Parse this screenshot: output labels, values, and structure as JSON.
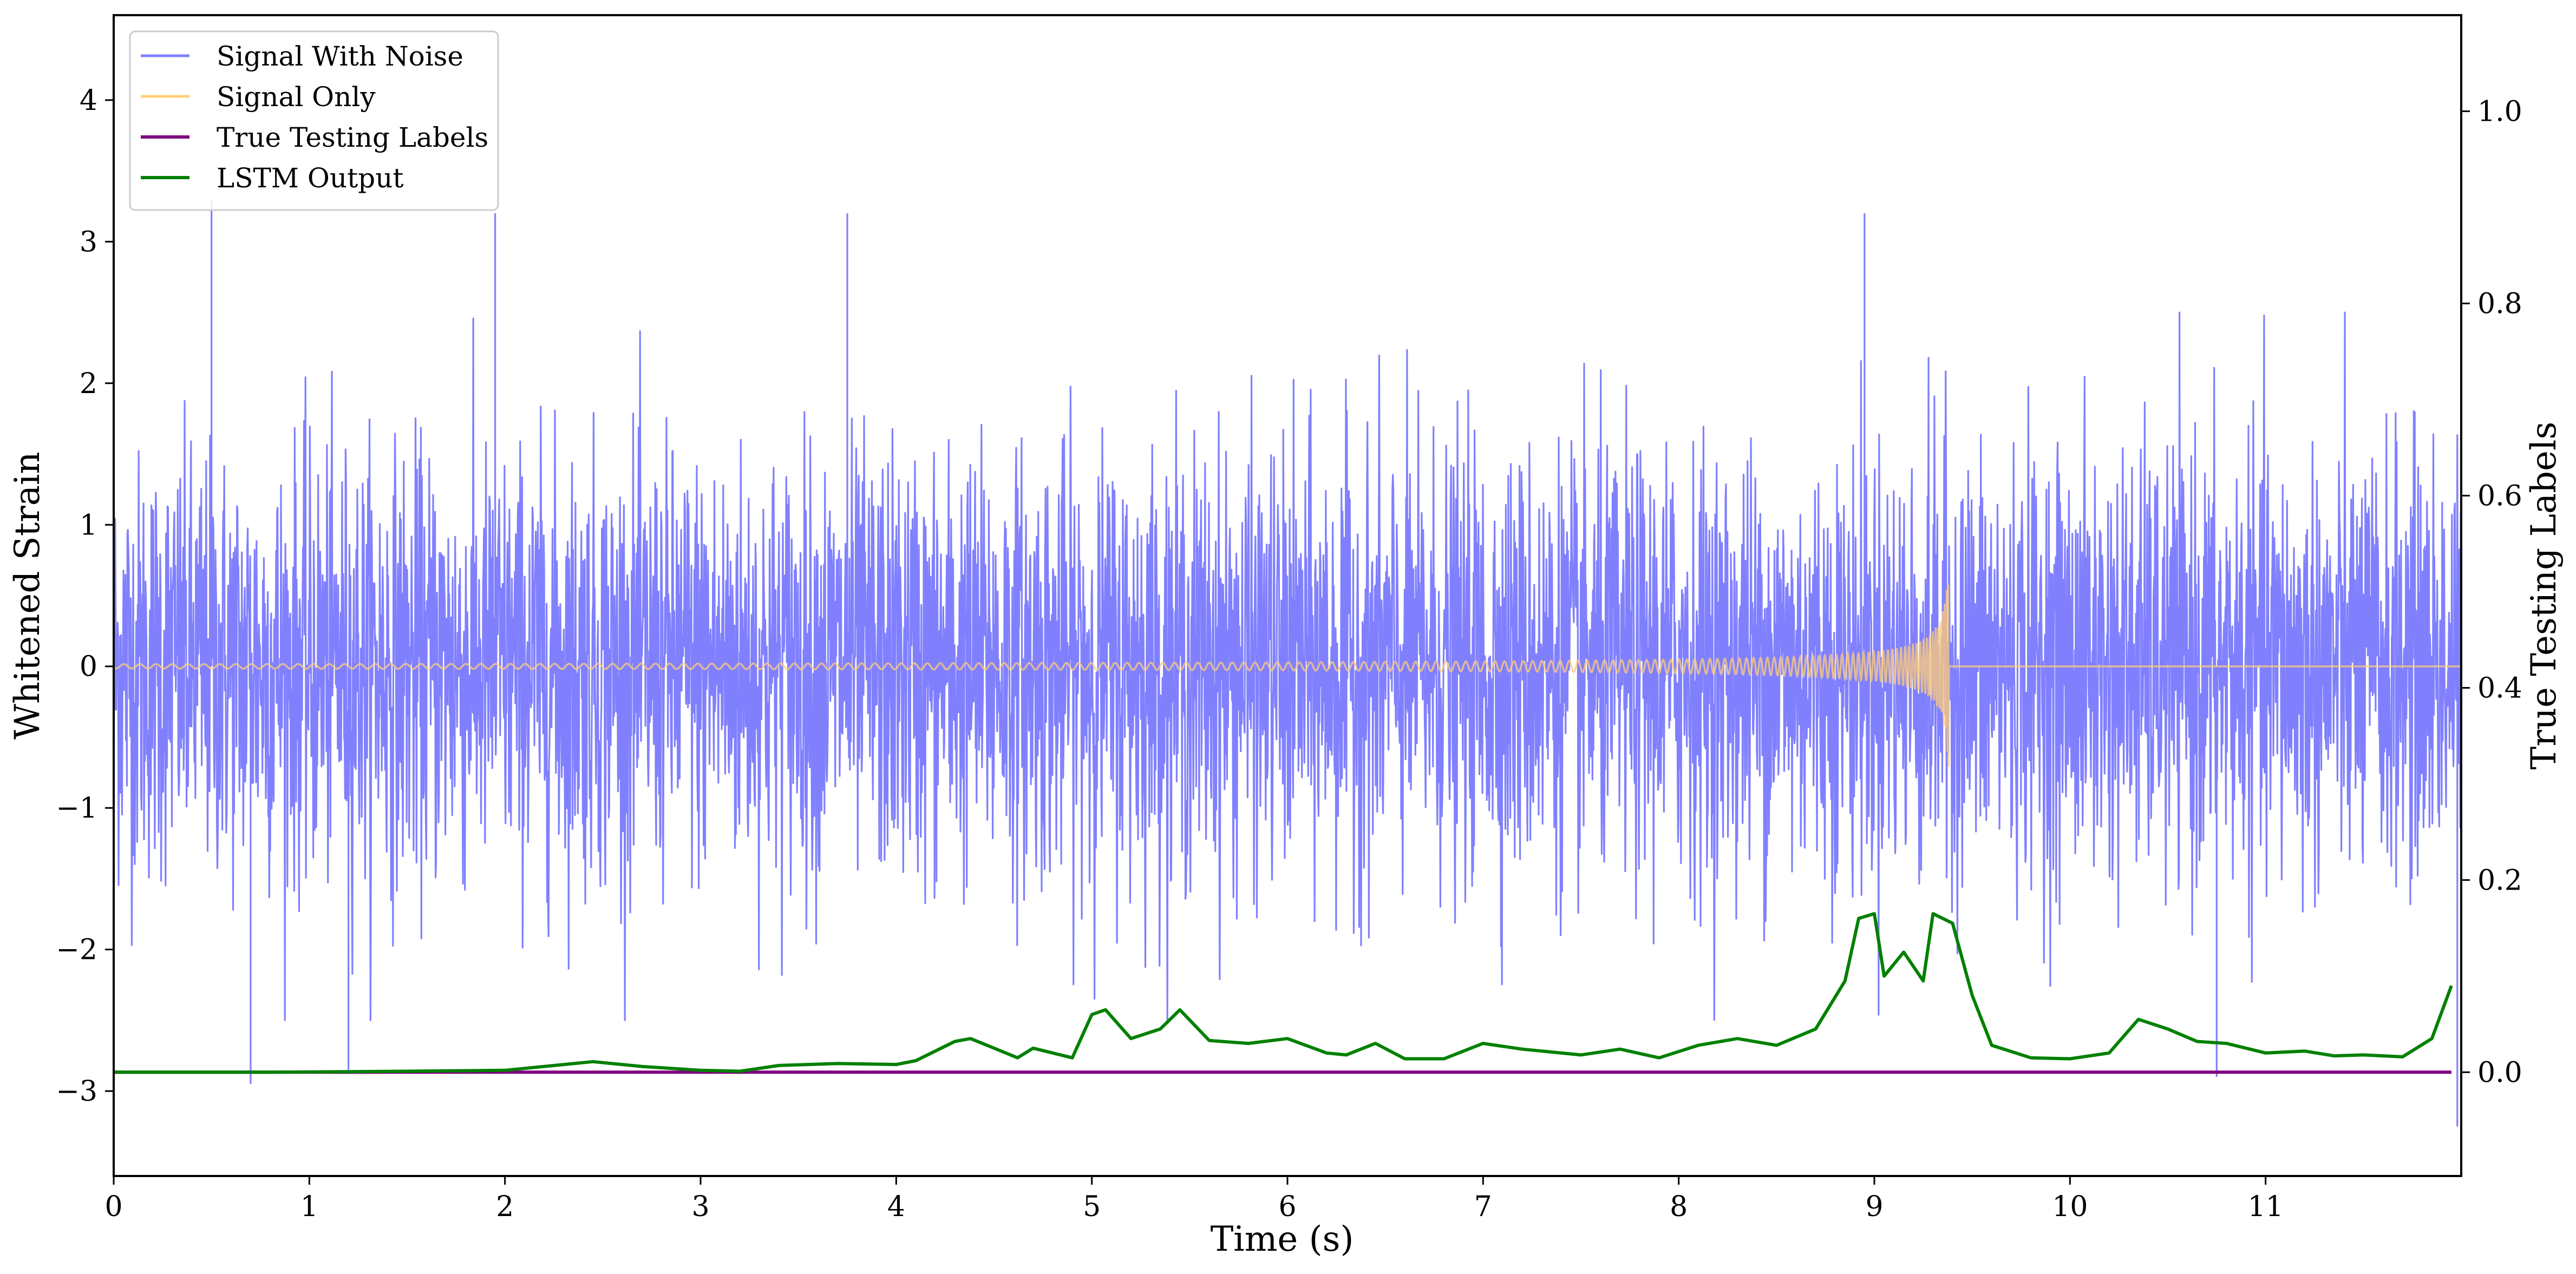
{
  "chart_data": {
    "type": "line",
    "title": "",
    "xlabel": "Time (s)",
    "ylabel": "Whitened Strain",
    "y2label": "True Testing Labels",
    "xlim": [
      0,
      12.0
    ],
    "ylim": [
      -3.6,
      4.6
    ],
    "y2lim": [
      -0.108,
      1.1
    ],
    "xticks": [
      0,
      1,
      2,
      3,
      4,
      5,
      6,
      7,
      8,
      9,
      10,
      11
    ],
    "xtick_labels": [
      "0",
      "1",
      "2",
      "3",
      "4",
      "5",
      "6",
      "7",
      "8",
      "9",
      "10",
      "11"
    ],
    "yticks": [
      -3,
      -2,
      -1,
      0,
      1,
      2,
      3,
      4
    ],
    "ytick_labels": [
      "−3",
      "−2",
      "−1",
      "0",
      "1",
      "2",
      "3",
      "4"
    ],
    "y2ticks": [
      0.0,
      0.2,
      0.4,
      0.6,
      0.8,
      1.0
    ],
    "y2tick_labels": [
      "0.0",
      "0.2",
      "0.4",
      "0.6",
      "0.8",
      "1.0"
    ],
    "grid": false,
    "legend_position": "top-left",
    "series": [
      {
        "name": "Signal With Noise",
        "color": "#8080ff",
        "axis": "left",
        "kind": "noise",
        "samples": 4800,
        "sigma": 0.75,
        "spikes": [
          {
            "x": 0.5,
            "y": 3.3
          },
          {
            "x": 0.7,
            "y": -2.95
          },
          {
            "x": 1.2,
            "y": -2.85
          },
          {
            "x": 1.95,
            "y": 3.2
          },
          {
            "x": 3.75,
            "y": 3.2
          },
          {
            "x": 8.95,
            "y": 3.2
          },
          {
            "x": 10.75,
            "y": -2.9
          },
          {
            "x": 11.98,
            "y": -3.25
          }
        ]
      },
      {
        "name": "Signal Only",
        "color": "#ffcc77",
        "axis": "left",
        "kind": "chirp",
        "merger_time": 9.38,
        "peak_amplitude": 0.85
      },
      {
        "name": "True Testing Labels",
        "color": "#800080",
        "axis": "right",
        "points": [
          [
            0,
            0.0
          ],
          [
            11.95,
            0.0
          ]
        ]
      },
      {
        "name": "LSTM Output",
        "color": "#008000",
        "axis": "right",
        "points": [
          [
            0,
            0.0
          ],
          [
            0.8,
            0.0
          ],
          [
            1.5,
            0.001
          ],
          [
            2.0,
            0.002
          ],
          [
            2.2,
            0.006
          ],
          [
            2.45,
            0.011
          ],
          [
            2.7,
            0.006
          ],
          [
            3.0,
            0.002
          ],
          [
            3.2,
            0.001
          ],
          [
            3.4,
            0.007
          ],
          [
            3.7,
            0.009
          ],
          [
            4.0,
            0.008
          ],
          [
            4.1,
            0.012
          ],
          [
            4.3,
            0.032
          ],
          [
            4.38,
            0.035
          ],
          [
            4.5,
            0.025
          ],
          [
            4.62,
            0.015
          ],
          [
            4.7,
            0.025
          ],
          [
            4.9,
            0.015
          ],
          [
            5.0,
            0.06
          ],
          [
            5.07,
            0.065
          ],
          [
            5.2,
            0.035
          ],
          [
            5.35,
            0.045
          ],
          [
            5.45,
            0.065
          ],
          [
            5.6,
            0.033
          ],
          [
            5.8,
            0.03
          ],
          [
            6.0,
            0.035
          ],
          [
            6.2,
            0.02
          ],
          [
            6.3,
            0.018
          ],
          [
            6.45,
            0.03
          ],
          [
            6.6,
            0.014
          ],
          [
            6.8,
            0.014
          ],
          [
            7.0,
            0.03
          ],
          [
            7.2,
            0.024
          ],
          [
            7.5,
            0.018
          ],
          [
            7.7,
            0.024
          ],
          [
            7.9,
            0.015
          ],
          [
            8.1,
            0.028
          ],
          [
            8.3,
            0.035
          ],
          [
            8.5,
            0.028
          ],
          [
            8.7,
            0.045
          ],
          [
            8.85,
            0.095
          ],
          [
            8.92,
            0.16
          ],
          [
            9.0,
            0.165
          ],
          [
            9.05,
            0.1
          ],
          [
            9.15,
            0.125
          ],
          [
            9.25,
            0.095
          ],
          [
            9.3,
            0.165
          ],
          [
            9.4,
            0.155
          ],
          [
            9.5,
            0.08
          ],
          [
            9.6,
            0.028
          ],
          [
            9.8,
            0.015
          ],
          [
            10.0,
            0.014
          ],
          [
            10.2,
            0.02
          ],
          [
            10.35,
            0.055
          ],
          [
            10.5,
            0.045
          ],
          [
            10.65,
            0.032
          ],
          [
            10.8,
            0.03
          ],
          [
            11.0,
            0.02
          ],
          [
            11.2,
            0.022
          ],
          [
            11.35,
            0.017
          ],
          [
            11.5,
            0.018
          ],
          [
            11.7,
            0.016
          ],
          [
            11.85,
            0.035
          ],
          [
            11.95,
            0.09
          ]
        ]
      }
    ]
  }
}
